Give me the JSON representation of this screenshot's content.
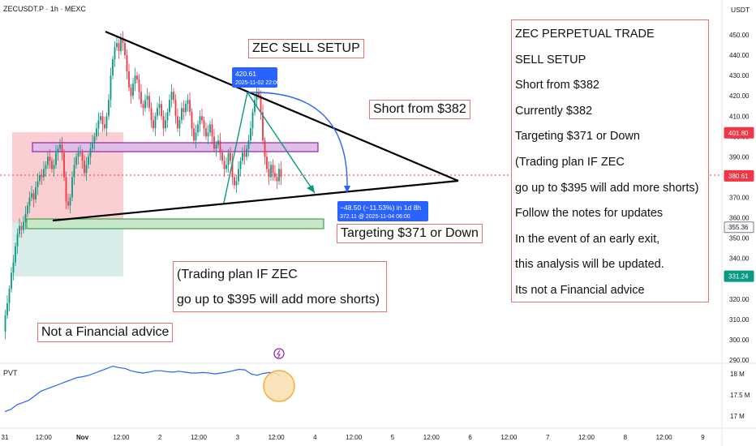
{
  "header": {
    "symbol": "ZECUSDT.P · 1h · MEXC",
    "currency": "USDT"
  },
  "indicator": {
    "label": "PVT",
    "ticks": [
      "18 M",
      "17.5 M",
      "17 M"
    ]
  },
  "annotations": {
    "title_box": "ZEC SELL SETUP",
    "short_box": "Short from $382",
    "target_box": "Targeting $371 or Down",
    "plan_lines": [
      "(Trading plan IF ZEC",
      "go up to $395 will add more shorts)"
    ],
    "disclaimer_box": "Not a Financial advice",
    "projection_top": {
      "value": "420.61",
      "time": "2025-11-02 22:00"
    },
    "projection_bottom": {
      "change": "−48.50 (−11.53%) in 1d 8h",
      "detail": "372.11 @ 2025-11-04  06:00"
    }
  },
  "trade_panel": {
    "lines": [
      "ZEC PERPETUAL TRADE",
      "SELL SETUP",
      "Short from $382",
      "Currently $382",
      "Targeting $371 or Down",
      "(Trading plan IF ZEC",
      "go up to $395 will add more shorts)",
      "Follow the notes for updates",
      "In the event of an early exit,",
      "this analysis will be updated.",
      "Its not a Financial advice"
    ]
  },
  "colors": {
    "up": "#089981",
    "down": "#f23645",
    "projection": "#2962ff",
    "trendline": "#000000",
    "note_border": "#e57373"
  },
  "chart_data": {
    "type": "candlestick",
    "title": "ZECUSDT.P · 1h · MEXC",
    "ylabel": "USDT",
    "ylim": [
      288,
      456
    ],
    "y_ticks": [
      450,
      440,
      430,
      420,
      410,
      400,
      390,
      380,
      370,
      360,
      350,
      340,
      330,
      320,
      310,
      300,
      290
    ],
    "y_tick_labels": [
      "450.00",
      "440.00",
      "430.00",
      "420.00",
      "410.00",
      "400.00",
      "390.00",
      "380.00",
      "370.00",
      "360.00",
      "350.00",
      "340.00",
      "330.00",
      "320.00",
      "310.00",
      "300.00",
      "290.00"
    ],
    "x_tick_labels": [
      "31",
      "12:00",
      "Nov",
      "12:00",
      "2",
      "12:00",
      "3",
      "12:00",
      "4",
      "12:00",
      "5",
      "12:00",
      "6",
      "12:00",
      "7",
      "12:00",
      "8",
      "12:00",
      "9"
    ],
    "price_labels": [
      {
        "value": 401.8,
        "text": "401.80",
        "color": "#f23645"
      },
      {
        "value": 380.61,
        "text": "380.61",
        "color": "#f23645"
      },
      {
        "value": 355.36,
        "text": "355.36",
        "color": "#787b86"
      },
      {
        "value": 331.24,
        "text": "331.24",
        "color": "#089981"
      }
    ],
    "close_series": [
      304,
      312,
      318,
      325,
      333,
      338,
      346,
      352,
      356,
      354,
      358,
      362,
      366,
      370,
      372,
      369,
      375,
      378,
      381,
      380,
      384,
      386,
      390,
      388,
      384,
      386,
      392,
      394,
      396,
      392,
      380,
      368,
      366,
      370,
      380,
      386,
      390,
      392,
      392,
      388,
      382,
      386,
      390,
      394,
      397,
      400,
      404,
      408,
      410,
      406,
      404,
      410,
      418,
      430,
      438,
      444,
      446,
      442,
      448,
      446,
      440,
      432,
      424,
      420,
      426,
      430,
      428,
      422,
      416,
      414,
      418,
      420,
      414,
      408,
      404,
      410,
      414,
      416,
      410,
      404,
      408,
      412,
      418,
      422,
      418,
      410,
      404,
      408,
      414,
      412,
      416,
      418,
      412,
      404,
      398,
      402,
      406,
      410,
      408,
      404,
      400,
      402,
      406,
      400,
      394,
      396,
      398,
      392,
      388,
      384,
      386,
      392,
      388,
      380,
      376,
      378,
      384,
      388,
      392,
      390,
      394,
      398,
      404,
      412,
      418,
      422,
      420,
      412,
      398,
      390,
      384,
      380,
      386,
      382,
      380,
      378,
      384,
      380
    ],
    "pvt": [
      17.15,
      17.2,
      17.3,
      17.35,
      17.4,
      17.5,
      17.6,
      17.65,
      17.7,
      17.75,
      17.8,
      17.85,
      17.9,
      17.92,
      17.95,
      18.0,
      18.05,
      18.1,
      18.15,
      18.12,
      18.1,
      18.05,
      18.02,
      18.0,
      18.02,
      18.05,
      18.05,
      18.03,
      18.02,
      18.04,
      18.02,
      18.0,
      18.0,
      18.01,
      18.0,
      17.98,
      18.0,
      18.02,
      18.05,
      18.08,
      18.07,
      17.98,
      17.95,
      17.99,
      18.01,
      18.0,
      17.92
    ],
    "trendlines": [
      {
        "name": "descending resistance",
        "from": {
          "x": "Oct 31 ~22:00",
          "y": 451
        },
        "to": {
          "x": "Nov 5 ~15:00",
          "y": 377
        }
      },
      {
        "name": "ascending support",
        "from": {
          "x": "Oct 31 ~06:00",
          "y": 358
        },
        "to": {
          "x": "Nov 5 ~15:00",
          "y": 377
        }
      }
    ],
    "zones": [
      {
        "name": "resistance zone",
        "y": [
          390,
          393
        ]
      },
      {
        "name": "support zone",
        "y": [
          355,
          358
        ]
      }
    ],
    "projection": {
      "from": 420.61,
      "to": 372.11,
      "change": -48.5,
      "change_pct": -11.53
    }
  }
}
